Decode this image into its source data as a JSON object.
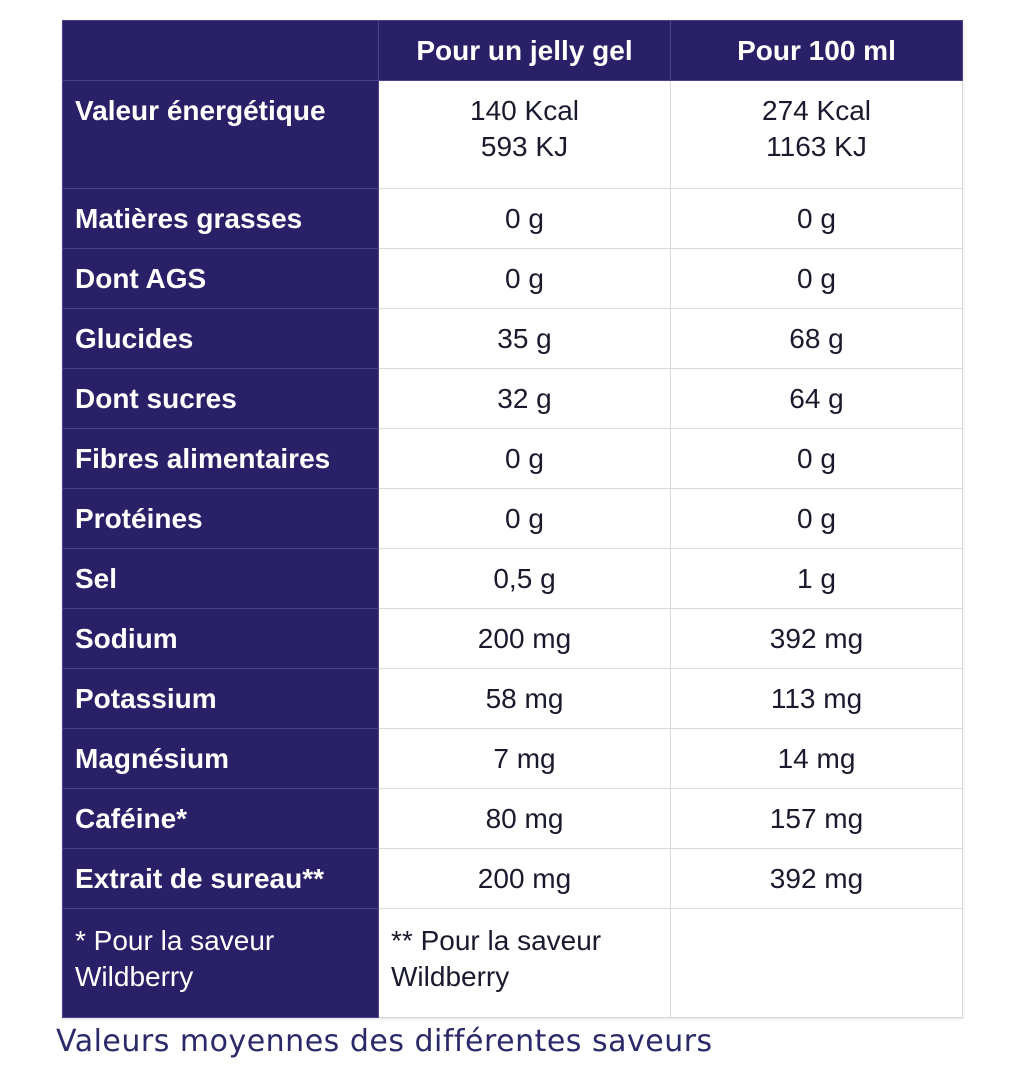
{
  "table": {
    "header": {
      "corner": "",
      "col_gel": "Pour un jelly gel",
      "col_100": "Pour 100 ml"
    },
    "energy": {
      "label": "Valeur énergétique",
      "gel_kcal": "140 Kcal",
      "gel_kj": "593 KJ",
      "per100_kcal": "274 Kcal",
      "per100_kj": "1163 KJ"
    },
    "rows": [
      {
        "label": "Matières grasses",
        "gel": "0 g",
        "per100": "0 g"
      },
      {
        "label": "Dont AGS",
        "gel": "0 g",
        "per100": "0 g"
      },
      {
        "label": "Glucides",
        "gel": "35 g",
        "per100": "68 g"
      },
      {
        "label": "Dont sucres",
        "gel": "32 g",
        "per100": "64 g"
      },
      {
        "label": "Fibres alimentaires",
        "gel": "0 g",
        "per100": "0 g"
      },
      {
        "label": "Protéines",
        "gel": "0 g",
        "per100": "0 g"
      },
      {
        "label": "Sel",
        "gel": "0,5 g",
        "per100": "1 g"
      },
      {
        "label": "Sodium",
        "gel": "200 mg",
        "per100": "392 mg"
      },
      {
        "label": "Potassium",
        "gel": "58 mg",
        "per100": "113 mg"
      },
      {
        "label": "Magnésium",
        "gel": "7 mg",
        "per100": "14 mg"
      },
      {
        "label": "Caféine*",
        "gel": "80 mg",
        "per100": "157 mg"
      },
      {
        "label": "Extrait de sureau**",
        "gel": "200 mg",
        "per100": "392 mg"
      }
    ],
    "footnotes": {
      "left": "* Pour la saveur Wildberry",
      "mid": "** Pour la saveur Wildberry"
    }
  },
  "caption": "Valeurs moyennes des différentes saveurs",
  "colors": {
    "header_bg": "#2a2068",
    "header_text": "#ffffff",
    "body_text": "#1a1a2e",
    "caption_text": "#2a2a6a"
  }
}
